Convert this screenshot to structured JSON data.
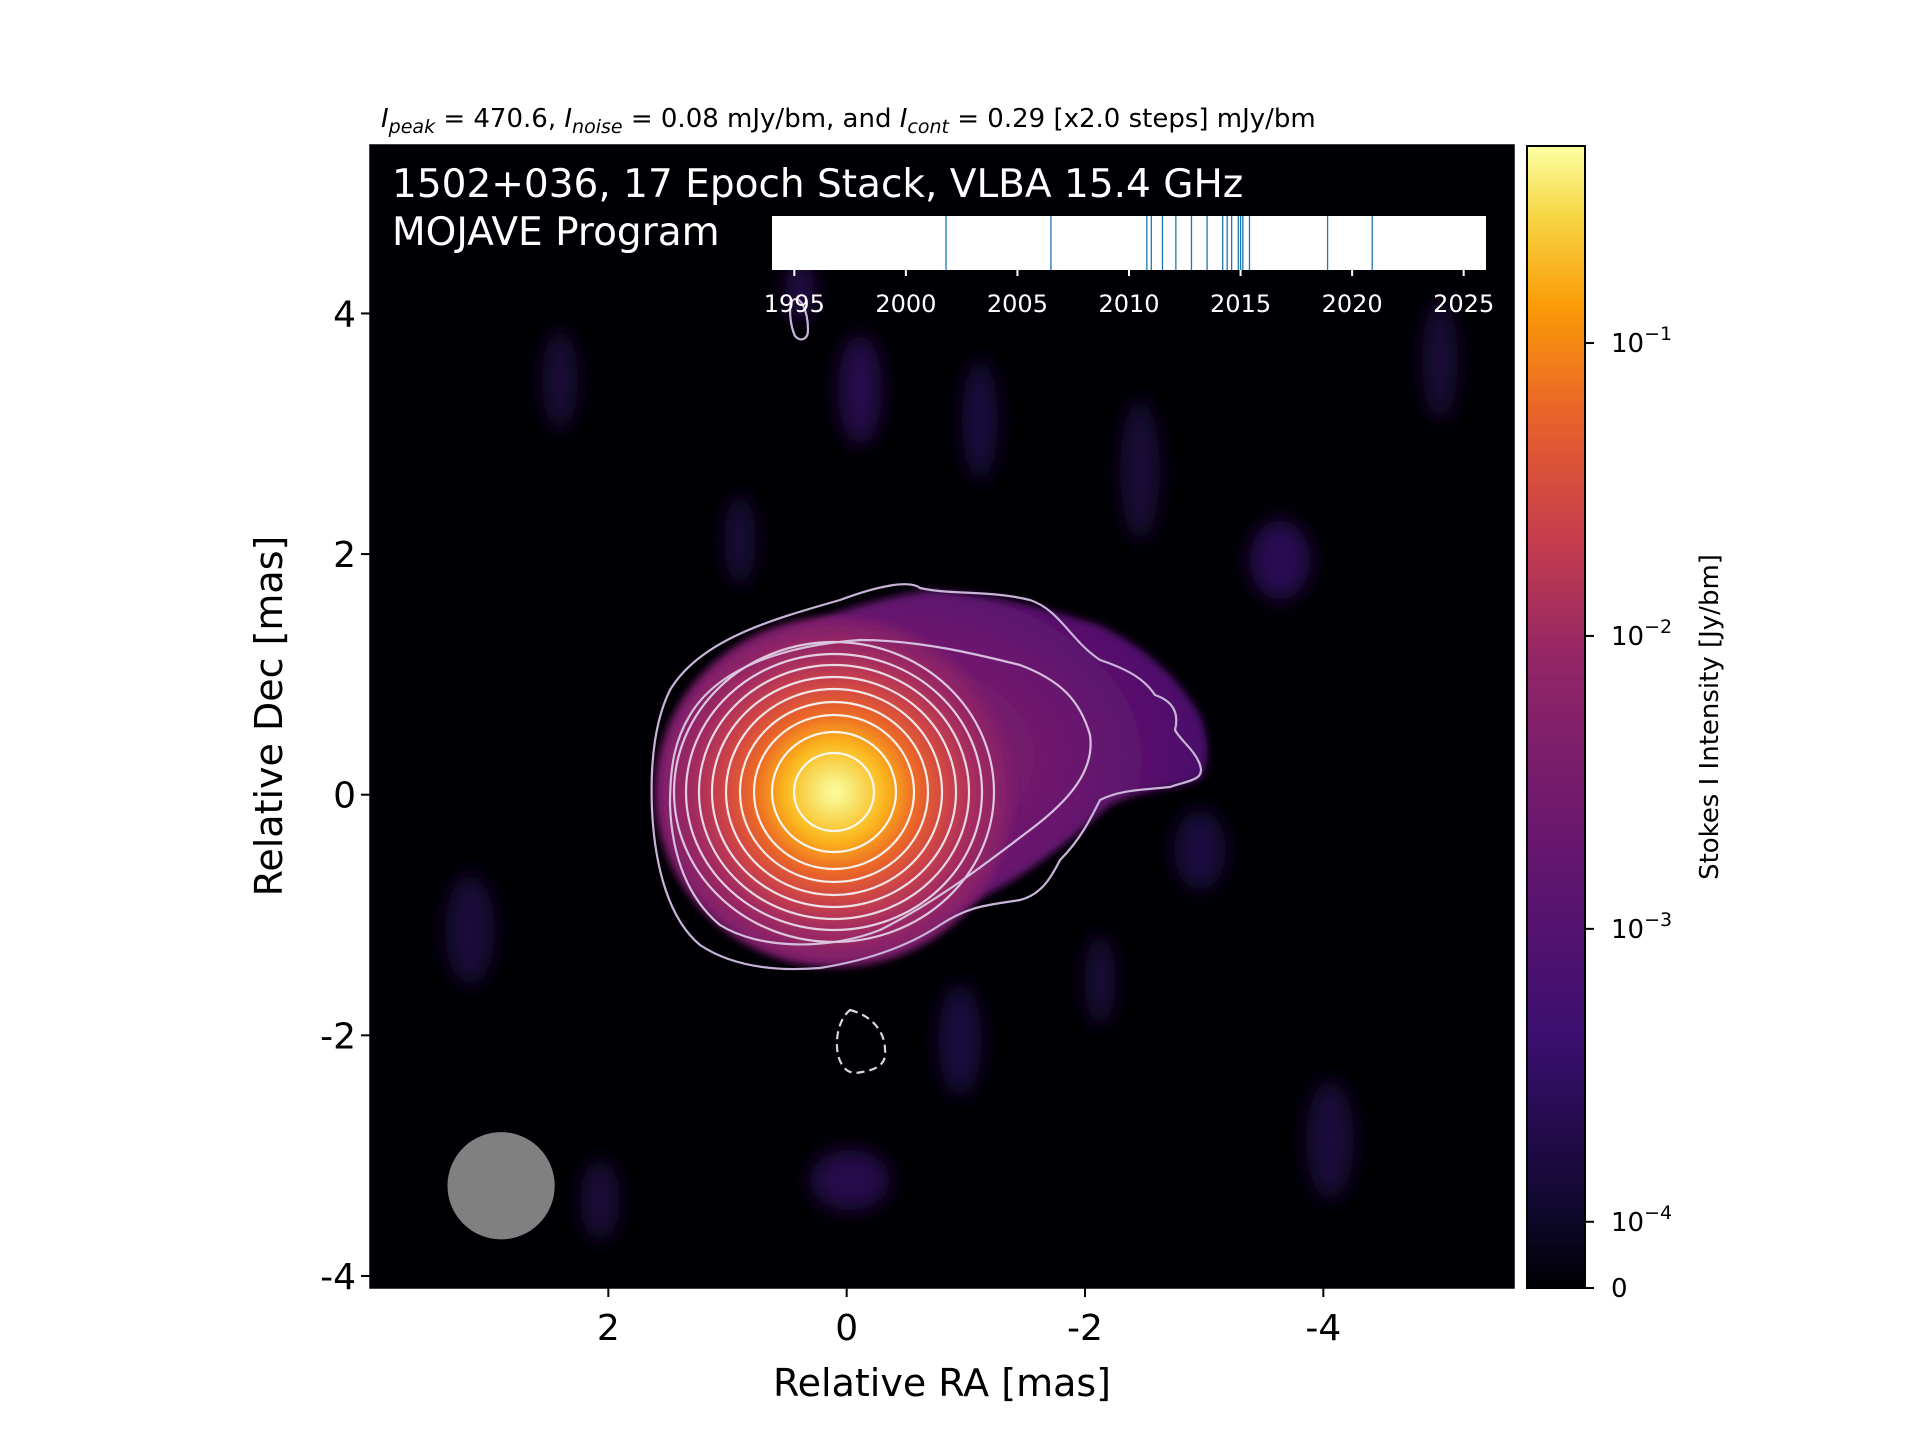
{
  "header": {
    "peak_label": "I",
    "peak_sub": "peak",
    "peak_value": " = 470.6, ",
    "noise_label": "I",
    "noise_sub": "noise",
    "noise_value": " = 0.08 mJy/bm, and ",
    "cont_label": "I",
    "cont_sub": "cont",
    "cont_value": " = 0.29 [x2.0 steps] mJy/bm"
  },
  "overlay": {
    "line1": "1502+036, 17 Epoch Stack, VLBA 15.4 GHz",
    "line2": "MOJAVE Program"
  },
  "chart_data": {
    "type": "heatmap",
    "xlabel": "Relative RA [mas]",
    "ylabel": "Relative Dec [mas]",
    "xlim": [
      4.0,
      -5.6
    ],
    "ylim": [
      -4.1,
      5.4
    ],
    "xticks": [
      {
        "value": 2,
        "label": "2"
      },
      {
        "value": 0,
        "label": "0"
      },
      {
        "value": -2,
        "label": "-2"
      },
      {
        "value": -4,
        "label": "-4"
      }
    ],
    "yticks": [
      {
        "value": 4,
        "label": "4"
      },
      {
        "value": 2,
        "label": "2"
      },
      {
        "value": 0,
        "label": "0"
      },
      {
        "value": -2,
        "label": "-2"
      },
      {
        "value": -4,
        "label": "-4"
      }
    ],
    "colormap": [
      "#000004",
      "#1b0c41",
      "#4a0c6b",
      "#781c6d",
      "#a52c60",
      "#cf4446",
      "#ed6925",
      "#fb9b06",
      "#f7d13d",
      "#fcffa4"
    ],
    "colorbar": {
      "label": "Stokes I Intensity [Jy/bm]",
      "scale": "symlog",
      "range": [
        0,
        0.4706
      ],
      "ticks": [
        {
          "value": 0.1,
          "base": "10",
          "exp": "−1"
        },
        {
          "value": 0.01,
          "base": "10",
          "exp": "−2"
        },
        {
          "value": 0.001,
          "base": "10",
          "exp": "−3"
        },
        {
          "value": 0.0001,
          "base": "10",
          "exp": "−4"
        },
        {
          "value": 0,
          "base": "0",
          "exp": ""
        }
      ]
    },
    "peak_mjy_per_beam": 470.6,
    "noise_mjy_per_beam": 0.08,
    "lowest_contour_mjy_per_beam": 0.29,
    "contour_step_factor": 2.0,
    "source": {
      "core": [
        0,
        0
      ],
      "jet_extent": [
        -3.1,
        0.3
      ]
    },
    "beam": {
      "center": [
        2.9,
        -3.25
      ],
      "diameter_mas": 0.9,
      "color": "#808080"
    },
    "epoch_timeline": {
      "xlim": [
        1994,
        2026
      ],
      "ticks": [
        1995,
        2000,
        2005,
        2010,
        2015,
        2020,
        2025
      ],
      "epochs": [
        2001.8,
        2006.5,
        2010.8,
        2011.0,
        2011.5,
        2012.1,
        2012.8,
        2013.5,
        2014.2,
        2014.4,
        2014.6,
        2014.9,
        2015.1,
        2015.4,
        2018.9,
        2020.9,
        2015.0
      ]
    }
  }
}
